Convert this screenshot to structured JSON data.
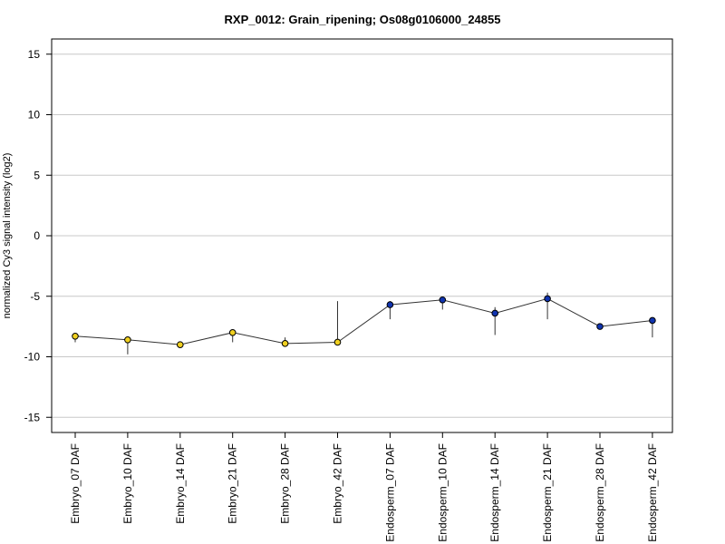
{
  "chart_data": {
    "type": "line",
    "title": "RXP_0012: Grain_ripening; Os08g0106000_24855",
    "xlabel": "",
    "ylabel": "normalized Cy3 signal intensity (log2)",
    "ylim": [
      -16,
      16
    ],
    "yticks": [
      -15,
      -10,
      -5,
      0,
      5,
      10,
      15
    ],
    "ytick_labels": [
      "-15",
      "-10",
      "-5",
      "0",
      "5",
      "10",
      "15"
    ],
    "grid": "horizontal",
    "categories": [
      "Embryo_07 DAF",
      "Embryo_10 DAF",
      "Embryo_14 DAF",
      "Embryo_21 DAF",
      "Embryo_28 DAF",
      "Embryo_42 DAF",
      "Endosperm_07 DAF",
      "Endosperm_10 DAF",
      "Endosperm_14 DAF",
      "Endosperm_21 DAF",
      "Endosperm_28 DAF",
      "Endosperm_42 DAF"
    ],
    "values": [
      -8.3,
      -8.6,
      -9.0,
      -8.0,
      -8.9,
      -8.8,
      -5.7,
      -5.3,
      -6.4,
      -5.2,
      -7.5,
      -7.0
    ],
    "err_low": [
      -8.8,
      -9.8,
      -9.0,
      -8.8,
      -9.0,
      -8.8,
      -6.9,
      -6.1,
      -8.2,
      -6.9,
      -7.5,
      -8.4
    ],
    "err_high": [
      -8.2,
      -8.5,
      -9.0,
      -7.9,
      -8.4,
      -5.4,
      -5.4,
      -5.2,
      -5.9,
      -4.7,
      -7.4,
      -7.0
    ],
    "point_colors": [
      "#f0d020",
      "#f0d020",
      "#f0d020",
      "#f0d020",
      "#f0d020",
      "#f0d020",
      "#1034b0",
      "#1034b0",
      "#1034b0",
      "#1034b0",
      "#1034b0",
      "#1034b0"
    ],
    "line_color": "#333333",
    "grid_color": "#c8c8c8"
  }
}
